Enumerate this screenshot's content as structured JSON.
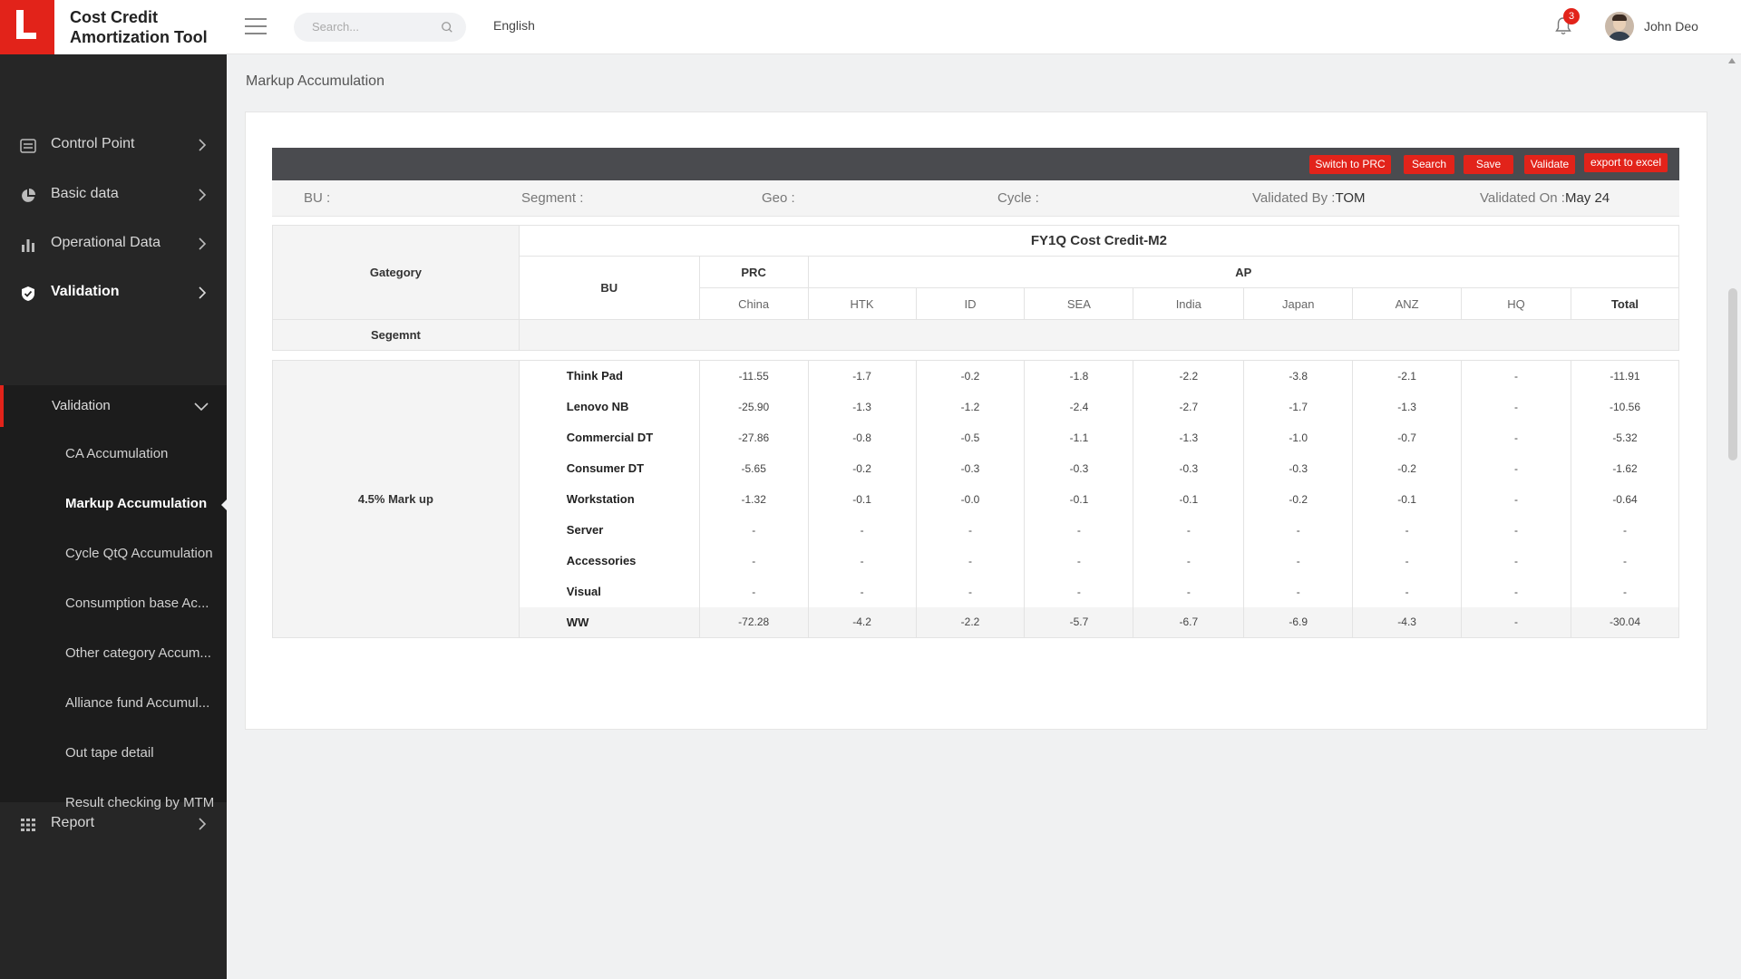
{
  "app": {
    "title": "Cost Credit\nAmortization Tool"
  },
  "header": {
    "search_placeholder": "Search...",
    "language": "English",
    "notification_count": "3",
    "user_name": "John Deo"
  },
  "sidebar": {
    "items": [
      {
        "label": "Control Point",
        "icon": "list-icon"
      },
      {
        "label": "Basic data",
        "icon": "pie-chart-icon"
      },
      {
        "label": "Operational Data",
        "icon": "bar-chart-icon"
      },
      {
        "label": "Validation",
        "icon": "shield-check-icon"
      },
      {
        "label": "Report",
        "icon": "grid-icon"
      }
    ],
    "validation_group": {
      "label": "Validation",
      "items": [
        "CA Accumulation",
        "Markup Accumulation",
        "Cycle QtQ Accumulation",
        "Consumption base Ac...",
        "Other category Accum...",
        "Alliance fund Accumul...",
        "Out tape detail",
        "Result checking by MTM"
      ],
      "active": "Markup Accumulation"
    }
  },
  "page": {
    "title": "Markup Accumulation"
  },
  "toolbar": {
    "switch": "Switch to PRC",
    "search": "Search",
    "save": "Save",
    "validate": "Validate",
    "export": "export to excel"
  },
  "filters": {
    "bu": "BU :",
    "segment": "Segment :",
    "geo": "Geo :",
    "cycle": "Cycle :",
    "validated_by_label": "Validated By :",
    "validated_by_value": "TOM",
    "validated_on_label": "Validated On :",
    "validated_on_value": "May 24"
  },
  "table": {
    "category_label": "Gategory",
    "segment_label": "Segemnt",
    "bu_label": "BU",
    "title": "FY1Q Cost Credit-M2",
    "groups": {
      "prc": "PRC",
      "ap": "AP"
    },
    "columns": [
      "China",
      "HTK",
      "ID",
      "SEA",
      "India",
      "Japan",
      "ANZ",
      "HQ",
      "Total"
    ],
    "category": "4.5% Mark up",
    "rows": [
      {
        "bu": "Think Pad",
        "values": [
          "-11.55",
          "-1.7",
          "-0.2",
          "-1.8",
          "-2.2",
          "-3.8",
          "-2.1",
          "-",
          "-11.91"
        ]
      },
      {
        "bu": "Lenovo NB",
        "values": [
          "-25.90",
          "-1.3",
          "-1.2",
          "-2.4",
          "-2.7",
          "-1.7",
          "-1.3",
          "-",
          "-10.56"
        ]
      },
      {
        "bu": "Commercial DT",
        "values": [
          "-27.86",
          "-0.8",
          "-0.5",
          "-1.1",
          "-1.3",
          "-1.0",
          "-0.7",
          "-",
          "-5.32"
        ]
      },
      {
        "bu": "Consumer DT",
        "values": [
          "-5.65",
          "-0.2",
          "-0.3",
          "-0.3",
          "-0.3",
          "-0.3",
          "-0.2",
          "-",
          "-1.62"
        ]
      },
      {
        "bu": "Workstation",
        "values": [
          "-1.32",
          "-0.1",
          "-0.0",
          "-0.1",
          "-0.1",
          "-0.2",
          "-0.1",
          "-",
          "-0.64"
        ]
      },
      {
        "bu": "Server",
        "values": [
          "-",
          "-",
          "-",
          "-",
          "-",
          "-",
          "-",
          "-",
          "-"
        ]
      },
      {
        "bu": "Accessories",
        "values": [
          "-",
          "-",
          "-",
          "-",
          "-",
          "-",
          "-",
          "-",
          "-"
        ]
      },
      {
        "bu": "Visual",
        "values": [
          "-",
          "-",
          "-",
          "-",
          "-",
          "-",
          "-",
          "-",
          "-"
        ]
      },
      {
        "bu": "WW",
        "values": [
          "-72.28",
          "-4.2",
          "-2.2",
          "-5.7",
          "-6.7",
          "-6.9",
          "-4.3",
          "-",
          "-30.04"
        ]
      }
    ]
  },
  "colors": {
    "accent": "#e2231a",
    "sidebar_bg": "#262626",
    "toolbar_bg": "#4a4b4f"
  }
}
